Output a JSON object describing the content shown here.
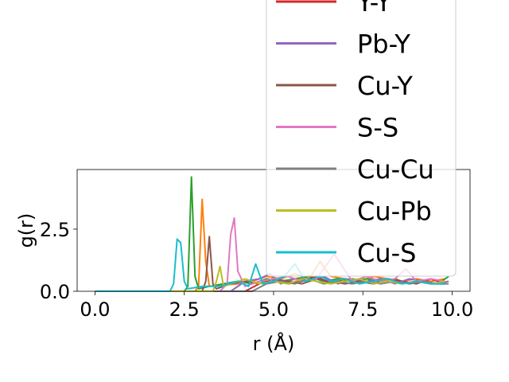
{
  "chart_data": {
    "type": "line",
    "title": "",
    "xlabel": "r (Å)",
    "ylabel": "g(r)",
    "xlim": [
      -0.5,
      10.5
    ],
    "ylim": [
      0.0,
      4.9
    ],
    "xticks": [
      0.0,
      2.5,
      5.0,
      7.5,
      10.0
    ],
    "xtick_labels": [
      "0.0",
      "2.5",
      "5.0",
      "7.5",
      "10.0"
    ],
    "yticks": [
      0.0,
      2.5
    ],
    "ytick_labels": [
      "0.0",
      "2.5"
    ],
    "grid": false,
    "legend_placement": "upper-right, extending above the axes",
    "series": [
      {
        "name": "",
        "color": "#ff7f0e",
        "x": [
          0,
          2.8,
          2.9,
          3.0,
          3.1,
          3.2,
          4.0,
          4.4,
          4.8,
          5.2,
          5.6,
          6.0,
          6.3,
          6.6,
          7.0,
          7.4,
          7.8,
          8.2,
          8.6,
          9.0,
          9.4,
          9.8
        ],
        "y": [
          0,
          0,
          0.2,
          3.7,
          1.2,
          0.2,
          0.3,
          0.4,
          0.6,
          0.5,
          0.7,
          0.5,
          1.2,
          0.6,
          0.5,
          0.4,
          0.6,
          0.5,
          0.4,
          0.5,
          0.4,
          0.5
        ]
      },
      {
        "name": "",
        "color": "#2ca02c",
        "x": [
          0,
          2.5,
          2.6,
          2.7,
          2.8,
          2.9,
          3.2,
          3.6,
          4.0,
          4.4,
          4.8,
          5.2,
          5.6,
          6.0,
          6.4,
          6.8,
          7.2,
          7.6,
          8.0,
          8.4,
          8.8,
          9.2,
          9.6,
          9.9
        ],
        "y": [
          0,
          0,
          0.2,
          4.6,
          0.6,
          0.1,
          0.2,
          0.3,
          0.4,
          0.3,
          0.5,
          0.4,
          0.5,
          0.6,
          0.4,
          0.5,
          0.4,
          0.5,
          0.4,
          0.5,
          0.3,
          0.4,
          0.3,
          0.6
        ]
      },
      {
        "name": "Y-Y",
        "color": "#d62728",
        "x": [
          0,
          4.2,
          4.6,
          5.0,
          5.4,
          5.8,
          6.2,
          6.6,
          7.0,
          7.4,
          7.8,
          8.2,
          8.6,
          9.0,
          9.4,
          9.8
        ],
        "y": [
          0,
          0,
          0.3,
          0.5,
          0.3,
          0.4,
          0.6,
          0.3,
          0.5,
          0.4,
          0.3,
          0.5,
          0.4,
          0.3,
          0.5,
          0.3
        ]
      },
      {
        "name": "Pb-Y",
        "color": "#9467bd",
        "x": [
          0,
          3.8,
          4.2,
          4.6,
          4.9,
          5.2,
          5.6,
          6.0,
          6.4,
          6.8,
          7.2,
          7.6,
          8.0,
          8.4,
          8.8,
          9.2,
          9.6,
          9.9
        ],
        "y": [
          0,
          0,
          0.4,
          0.5,
          0.7,
          0.3,
          0.5,
          0.4,
          0.6,
          0.3,
          0.5,
          0.4,
          0.5,
          0.3,
          0.5,
          0.4,
          0.3,
          0.4
        ]
      },
      {
        "name": "Cu-Y",
        "color": "#8c564b",
        "x": [
          0,
          3.0,
          3.1,
          3.2,
          3.3,
          3.4,
          3.8,
          4.2,
          4.6,
          5.0,
          5.4,
          5.8,
          6.2,
          6.6,
          7.0,
          7.4,
          7.8,
          8.2,
          8.6,
          9.0,
          9.4,
          9.8
        ],
        "y": [
          0,
          0,
          0.4,
          2.2,
          0.3,
          0.1,
          0.3,
          0.4,
          0.3,
          0.5,
          0.4,
          0.3,
          0.5,
          0.4,
          0.3,
          0.4,
          0.3,
          0.4,
          0.3,
          0.4,
          0.3,
          0.3
        ]
      },
      {
        "name": "S-S",
        "color": "#e377c2",
        "x": [
          0,
          3.5,
          3.7,
          3.8,
          3.9,
          4.0,
          4.2,
          4.6,
          5.0,
          5.4,
          5.8,
          6.2,
          6.7,
          7.2,
          7.6,
          8.0,
          8.4,
          8.7,
          9.0,
          9.4,
          9.8
        ],
        "y": [
          0,
          0,
          0.3,
          2.3,
          2.95,
          0.8,
          0.2,
          0.4,
          0.5,
          0.6,
          0.4,
          0.5,
          1.5,
          0.4,
          0.6,
          0.4,
          0.5,
          0.9,
          0.4,
          0.5,
          0.4
        ]
      },
      {
        "name": "Cu-Cu",
        "color": "#7f7f7f",
        "x": [
          0,
          4.4,
          4.8,
          5.2,
          5.6,
          6.0,
          6.4,
          6.8,
          7.2,
          7.6,
          8.0,
          8.4,
          8.8,
          9.2,
          9.6,
          9.9
        ],
        "y": [
          0,
          0,
          0.3,
          0.4,
          0.3,
          0.5,
          0.3,
          0.4,
          0.3,
          0.4,
          0.3,
          0.4,
          0.3,
          0.4,
          0.3,
          0.3
        ]
      },
      {
        "name": "Cu-Pb",
        "color": "#bcbd22",
        "x": [
          0,
          3.3,
          3.4,
          3.5,
          3.6,
          3.8,
          4.2,
          4.6,
          5.0,
          5.4,
          5.8,
          6.2,
          6.6,
          7.0,
          7.4,
          7.8,
          8.2,
          8.6,
          9.0,
          9.4,
          9.8
        ],
        "y": [
          0,
          0,
          0.4,
          1.0,
          0.2,
          0.3,
          0.5,
          0.3,
          0.4,
          0.3,
          0.5,
          0.4,
          0.3,
          0.4,
          0.5,
          0.3,
          0.4,
          0.3,
          0.4,
          0.3,
          0.4
        ]
      },
      {
        "name": "Cu-S",
        "color": "#17becf",
        "x": [
          0,
          2.1,
          2.2,
          2.3,
          2.4,
          2.5,
          2.6,
          3.0,
          3.5,
          4.0,
          4.3,
          4.5,
          4.7,
          5.0,
          5.3,
          5.6,
          5.9,
          6.3,
          6.6,
          7.0,
          7.4,
          7.8,
          8.2,
          8.6,
          9.0,
          9.4,
          9.8
        ],
        "y": [
          0,
          0,
          0.3,
          2.1,
          1.95,
          0.4,
          0.1,
          0.2,
          0.2,
          0.4,
          0.2,
          1.1,
          0.3,
          0.4,
          0.6,
          1.1,
          0.4,
          0.6,
          0.4,
          0.5,
          0.3,
          0.4,
          0.5,
          0.3,
          0.4,
          0.3,
          0.3
        ]
      }
    ]
  }
}
